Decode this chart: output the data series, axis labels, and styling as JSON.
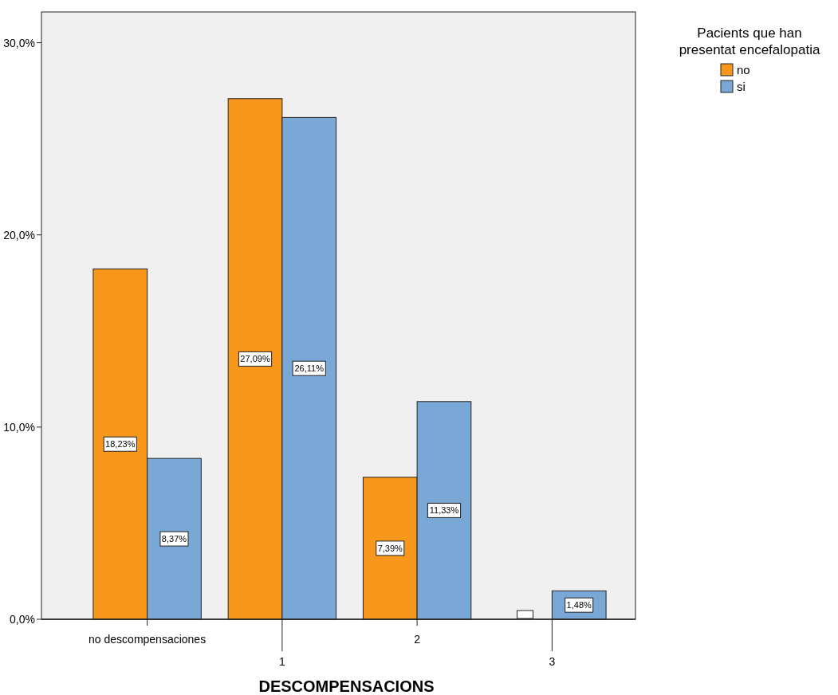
{
  "chart_data": {
    "type": "bar",
    "xlabel": "DESCOMPENSACIONS",
    "legend_title": "Pacients que han presentat encefalopatia",
    "categories": [
      "no descompensaciones",
      "1",
      "2",
      "3"
    ],
    "series": [
      {
        "name": "no",
        "color": "#f7971c",
        "values": [
          18.23,
          27.09,
          7.39,
          0
        ],
        "value_labels": [
          "18,23%",
          "27,09%",
          "7,39%",
          null
        ]
      },
      {
        "name": "si",
        "color": "#79a8d6",
        "values": [
          8.37,
          26.11,
          11.33,
          1.48
        ],
        "value_labels": [
          "8,37%",
          "26,11%",
          "11,33%",
          "1,48%"
        ]
      }
    ],
    "ylim": [
      0,
      31.6
    ],
    "yticks": [
      {
        "value": 0,
        "label": "0,0%"
      },
      {
        "value": 10,
        "label": "10,0%"
      },
      {
        "value": 20,
        "label": "20,0%"
      },
      {
        "value": 30,
        "label": "30,0%"
      }
    ],
    "grid": false,
    "legend": "top right"
  }
}
